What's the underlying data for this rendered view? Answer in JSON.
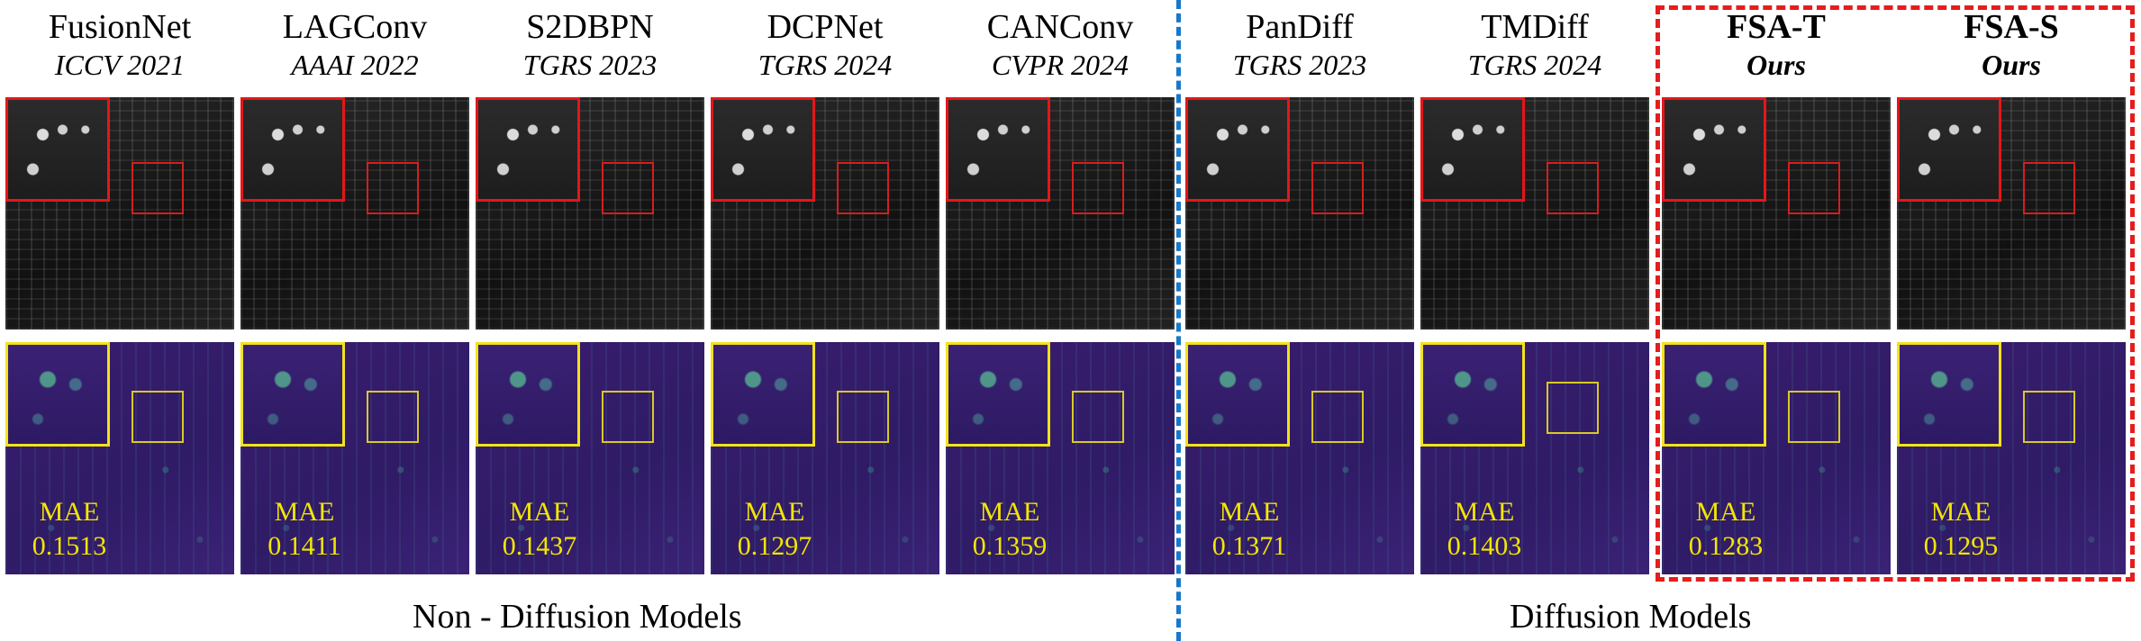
{
  "methods": [
    {
      "name": "FusionNet",
      "venue": "ICCV 2021",
      "mae_label": "MAE",
      "mae": "0.1513"
    },
    {
      "name": "LAGConv",
      "venue": "AAAI 2022",
      "mae_label": "MAE",
      "mae": "0.1411"
    },
    {
      "name": "S2DBPN",
      "venue": "TGRS 2023",
      "mae_label": "MAE",
      "mae": "0.1437"
    },
    {
      "name": "DCPNet",
      "venue": "TGRS 2024",
      "mae_label": "MAE",
      "mae": "0.1297"
    },
    {
      "name": "CANConv",
      "venue": "CVPR 2024",
      "mae_label": "MAE",
      "mae": "0.1359"
    },
    {
      "name": "PanDiff",
      "venue": "TGRS 2023",
      "mae_label": "MAE",
      "mae": "0.1371"
    },
    {
      "name": "TMDiff",
      "venue": "TGRS 2024",
      "mae_label": "MAE",
      "mae": "0.1403"
    },
    {
      "name": "FSA-T",
      "venue": "Ours",
      "mae_label": "MAE",
      "mae": "0.1283"
    },
    {
      "name": "FSA-S",
      "venue": "Ours",
      "mae_label": "MAE",
      "mae": "0.1295"
    }
  ],
  "groups": {
    "non_diffusion": "Non - Diffusion Models",
    "diffusion": "Diffusion Models"
  },
  "colors": {
    "zoom_sat": "#e5161a",
    "zoom_err": "#f2e21a",
    "ours_box": "#e51d1d",
    "separator": "#1778c9"
  }
}
